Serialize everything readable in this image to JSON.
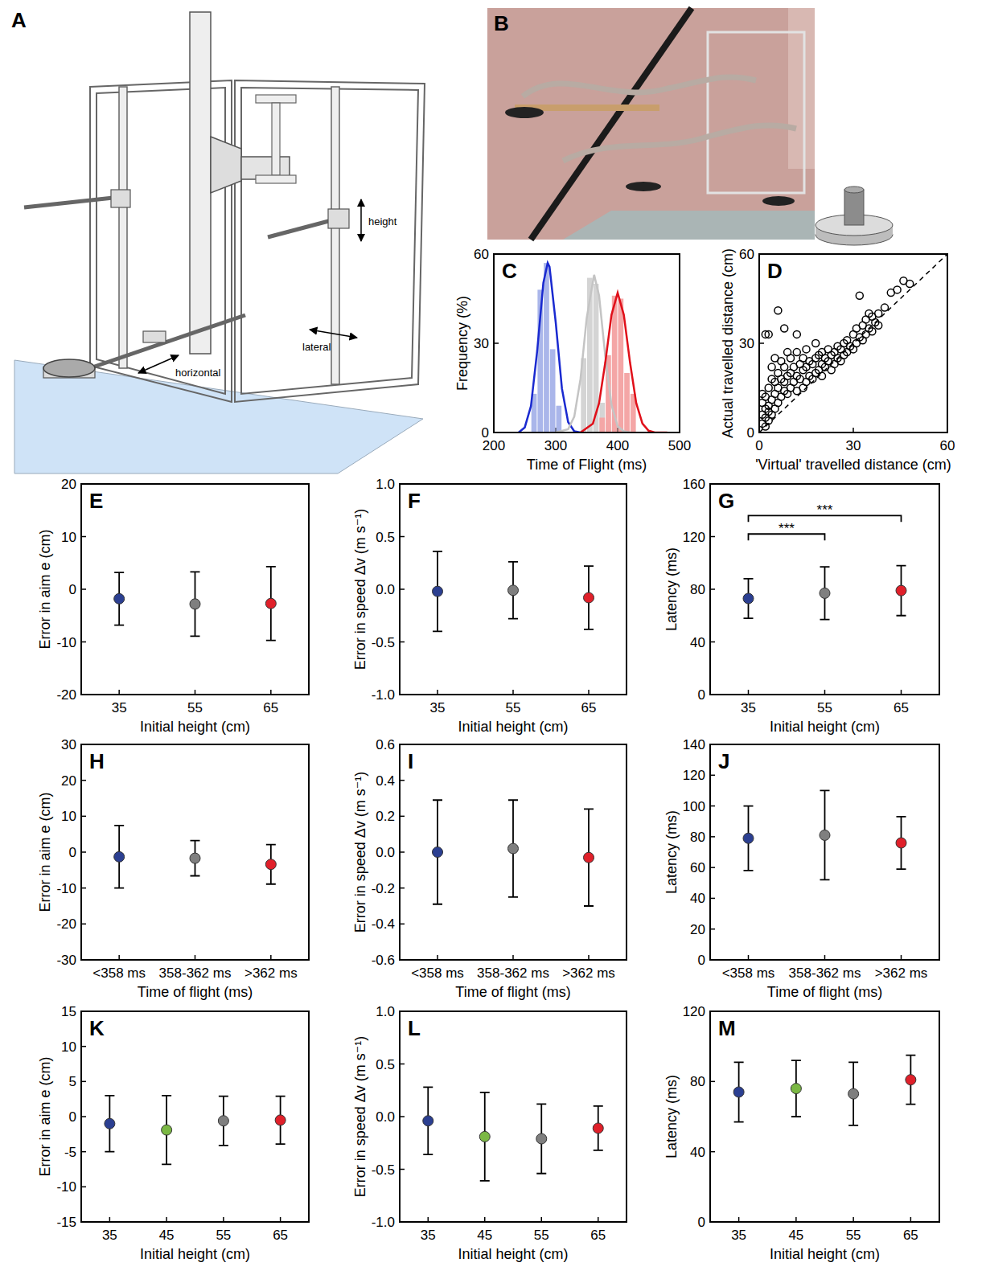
{
  "diagram": {
    "title": "A",
    "labels": [
      "height",
      "lateral",
      "horizontal"
    ]
  },
  "photo": {
    "title": "B"
  },
  "chart_data": [
    {
      "type": "histogram",
      "title": "C",
      "x_label": "Time of Flight (ms)",
      "y_label": "Frequency (%)",
      "xlim": [
        200,
        500
      ],
      "xticks": [
        200,
        300,
        400,
        500
      ],
      "ylim": [
        0,
        60
      ],
      "yticks": [
        0,
        30,
        60
      ],
      "bins": [
        250,
        260,
        270,
        280,
        290,
        300,
        310,
        320,
        330,
        340,
        350,
        360,
        370,
        380,
        390,
        400,
        410,
        420,
        430,
        440,
        450,
        460
      ],
      "series": [
        {
          "color": "#aab6ea",
          "values": [
            0,
            13,
            48,
            57,
            28,
            9,
            0,
            0,
            0,
            0,
            0,
            0,
            0,
            0,
            0,
            0,
            0,
            0,
            0,
            0,
            0
          ]
        },
        {
          "color": "#d4d4d4",
          "values": [
            0,
            0,
            0,
            0,
            0,
            0,
            0,
            0,
            0,
            25,
            52,
            50,
            10,
            3,
            0,
            0,
            0,
            0,
            0,
            0,
            0
          ]
        },
        {
          "color": "#f4a6a6",
          "values": [
            0,
            0,
            0,
            0,
            0,
            0,
            0,
            0,
            0,
            0,
            0,
            0,
            5,
            26,
            46,
            45,
            20,
            13,
            0,
            0,
            0
          ]
        },
        {
          "type": "line",
          "color": "#1a2ad0",
          "x": [
            240,
            250,
            260,
            270,
            280,
            287,
            290,
            300,
            310,
            320,
            330,
            340
          ],
          "values": [
            0,
            1.7,
            8.9,
            27.3,
            50.3,
            57,
            55.7,
            37,
            14.8,
            3.5,
            0.4,
            0
          ]
        },
        {
          "type": "line",
          "color": "#c4c4c4",
          "x": [
            300,
            320,
            330,
            340,
            350,
            362,
            370,
            380,
            390,
            400,
            410,
            420
          ],
          "values": [
            0,
            1.1,
            5.4,
            18,
            38.5,
            53,
            46,
            25.8,
            9.3,
            2.1,
            0.4,
            0
          ]
        },
        {
          "type": "line",
          "color": "#e0101a",
          "x": [
            340,
            360,
            370,
            380,
            390,
            400,
            410,
            420,
            430,
            440,
            450,
            460,
            480
          ],
          "values": [
            0,
            3,
            9.9,
            23.5,
            39.5,
            47,
            39.5,
            23.5,
            9.9,
            3,
            0.6,
            0,
            0
          ]
        }
      ]
    },
    {
      "type": "scatter",
      "title": "D",
      "x_label": "'Virtual' travelled distance (cm)",
      "y_label": "Actual travelled distance (cm)",
      "xlim": [
        0,
        60
      ],
      "xticks": [
        0,
        30,
        60
      ],
      "ylim": [
        0,
        60
      ],
      "yticks": [
        0,
        30,
        60
      ],
      "series": [
        {
          "type": "scatter",
          "marker": "circle",
          "color": "#000000",
          "x": [
            1,
            1,
            1,
            1,
            2,
            2,
            2,
            2,
            2,
            3,
            3,
            3,
            3,
            3,
            4,
            4,
            4,
            4,
            5,
            5,
            5,
            5,
            6,
            6,
            6,
            6,
            7,
            7,
            7,
            8,
            8,
            8,
            8,
            9,
            9,
            9,
            10,
            10,
            10,
            11,
            11,
            12,
            12,
            12,
            12,
            13,
            13,
            14,
            14,
            14,
            15,
            15,
            15,
            16,
            16,
            17,
            17,
            18,
            18,
            18,
            19,
            19,
            20,
            20,
            20,
            21,
            21,
            22,
            22,
            23,
            23,
            24,
            24,
            25,
            25,
            26,
            26,
            27,
            27,
            28,
            28,
            29,
            30,
            30,
            31,
            31,
            32,
            32,
            33,
            33,
            34,
            34,
            35,
            35,
            36,
            36,
            37,
            38,
            38,
            40,
            42,
            44,
            46,
            48
          ],
          "values": [
            3,
            6,
            10,
            13,
            2,
            5,
            8,
            12,
            33,
            4,
            7,
            9,
            15,
            33,
            6,
            11,
            18,
            22,
            8,
            13,
            17,
            25,
            10,
            15,
            20,
            41,
            12,
            18,
            24,
            14,
            17,
            22,
            35,
            13,
            19,
            27,
            15,
            20,
            25,
            17,
            22,
            14,
            19,
            27,
            33,
            18,
            23,
            15,
            21,
            25,
            17,
            22,
            28,
            19,
            24,
            18,
            23,
            20,
            25,
            30,
            21,
            26,
            19,
            23,
            27,
            22,
            25,
            24,
            28,
            21,
            26,
            23,
            27,
            25,
            29,
            24,
            28,
            26,
            30,
            27,
            31,
            29,
            28,
            33,
            30,
            35,
            32,
            46,
            31,
            36,
            33,
            38,
            35,
            40,
            34,
            39,
            37,
            36,
            40,
            42,
            47,
            48,
            51,
            50
          ]
        },
        {
          "type": "line",
          "line_style": "dashed",
          "color": "#000000",
          "x": [
            0,
            60
          ],
          "values": [
            0,
            60
          ]
        }
      ]
    },
    {
      "type": "errorbar",
      "title": "E",
      "x_label": "Initial height (cm)",
      "y_label": "Error in aim e (cm)",
      "categories": [
        "35",
        "55",
        "65"
      ],
      "values": [
        -1.8,
        -2.8,
        -2.7
      ],
      "errors": [
        5,
        6.1,
        7
      ],
      "colors": [
        "#2b3f91",
        "#7f7f7f",
        "#e0202a"
      ],
      "ylim": [
        -20,
        20
      ],
      "yticks": [
        -20,
        -10,
        0,
        10,
        20
      ]
    },
    {
      "type": "errorbar",
      "title": "F",
      "x_label": "Initial height (cm)",
      "y_label": "Error in speed Δv (m s⁻¹)",
      "categories": [
        "35",
        "55",
        "65"
      ],
      "values": [
        -0.02,
        -0.01,
        -0.08
      ],
      "errors": [
        0.38,
        0.27,
        0.3
      ],
      "colors": [
        "#2b3f91",
        "#7f7f7f",
        "#e0202a"
      ],
      "ylim": [
        -1,
        1
      ],
      "yticks": [
        {
          "value": -1,
          "label": "-1.0"
        },
        -0.5,
        {
          "value": 0,
          "label": "0.0"
        },
        0.5,
        {
          "value": 1,
          "label": "1.0"
        }
      ]
    },
    {
      "type": "errorbar",
      "title": "G",
      "x_label": "Initial height (cm)",
      "y_label": "Latency (ms)",
      "categories": [
        "35",
        "55",
        "65"
      ],
      "values": [
        73,
        77,
        79
      ],
      "errors": [
        15,
        20,
        19
      ],
      "colors": [
        "#2b3f91",
        "#7f7f7f",
        "#e0202a"
      ],
      "ylim": [
        0,
        160
      ],
      "yticks": [
        0,
        40,
        80,
        120,
        160
      ],
      "annotations": [
        {
          "text": "***",
          "from": 0,
          "to": 1,
          "y": 122
        },
        {
          "text": "***",
          "from": 0,
          "to": 2,
          "y": 136
        }
      ]
    },
    {
      "type": "errorbar",
      "title": "H",
      "x_label": "Time of flight (ms)",
      "y_label": "Error in aim e (cm)",
      "categories": [
        "<358 ms",
        "358-362 ms",
        ">362 ms"
      ],
      "values": [
        -1.3,
        -1.7,
        -3.4
      ],
      "errors": [
        8.7,
        4.9,
        5.5
      ],
      "colors": [
        "#2b3f91",
        "#7f7f7f",
        "#e0202a"
      ],
      "ylim": [
        -30,
        30
      ],
      "yticks": [
        -30,
        -20,
        -10,
        0,
        10,
        20,
        30
      ]
    },
    {
      "type": "errorbar",
      "title": "I",
      "x_label": "Time of flight (ms)",
      "y_label": "Error in speed Δv (m s⁻¹)",
      "categories": [
        "<358 ms",
        "358-362 ms",
        ">362 ms"
      ],
      "values": [
        0,
        0.02,
        -0.03
      ],
      "errors": [
        0.29,
        0.27,
        0.27
      ],
      "colors": [
        "#2b3f91",
        "#7f7f7f",
        "#e0202a"
      ],
      "ylim": [
        -0.6,
        0.6
      ],
      "yticks": [
        -0.6,
        -0.4,
        -0.2,
        {
          "value": 0,
          "label": "0.0"
        },
        0.2,
        0.4,
        0.6
      ]
    },
    {
      "type": "errorbar",
      "title": "J",
      "x_label": "Time of flight (ms)",
      "y_label": "Latency (ms)",
      "categories": [
        "<358 ms",
        "358-362 ms",
        ">362 ms"
      ],
      "values": [
        79,
        81,
        76
      ],
      "errors": [
        21,
        29,
        17
      ],
      "colors": [
        "#2b3f91",
        "#7f7f7f",
        "#e0202a"
      ],
      "ylim": [
        0,
        140
      ],
      "yticks": [
        0,
        20,
        40,
        60,
        80,
        100,
        120,
        140
      ]
    },
    {
      "type": "errorbar",
      "title": "K",
      "x_label": "Initial height (cm)",
      "y_label": "Error in aim e (cm)",
      "categories": [
        "35",
        "45",
        "55",
        "65"
      ],
      "values": [
        -1,
        -1.9,
        -0.6,
        -0.5
      ],
      "errors": [
        4,
        4.9,
        3.5,
        3.4
      ],
      "colors": [
        "#2b3f91",
        "#7bb844",
        "#7f7f7f",
        "#e0202a"
      ],
      "ylim": [
        -15,
        15
      ],
      "yticks": [
        -15,
        -10,
        -5,
        0,
        5,
        10,
        15
      ]
    },
    {
      "type": "errorbar",
      "title": "L",
      "x_label": "Initial height (cm)",
      "y_label": "Error in speed Δv (m s⁻¹)",
      "categories": [
        "35",
        "45",
        "55",
        "65"
      ],
      "values": [
        -0.04,
        -0.19,
        -0.21,
        -0.11
      ],
      "errors": [
        0.32,
        0.42,
        0.33,
        0.21
      ],
      "colors": [
        "#2b3f91",
        "#7bb844",
        "#7f7f7f",
        "#e0202a"
      ],
      "ylim": [
        -1,
        1
      ],
      "yticks": [
        {
          "value": -1,
          "label": "-1.0"
        },
        -0.5,
        {
          "value": 0,
          "label": "0.0"
        },
        0.5,
        {
          "value": 1,
          "label": "1.0"
        }
      ]
    },
    {
      "type": "errorbar",
      "title": "M",
      "x_label": "Initial height (cm)",
      "y_label": "Latency (ms)",
      "categories": [
        "35",
        "45",
        "55",
        "65"
      ],
      "values": [
        74,
        76,
        73,
        81
      ],
      "errors": [
        17,
        16,
        18,
        14
      ],
      "colors": [
        "#2b3f91",
        "#7bb844",
        "#7f7f7f",
        "#e0202a"
      ],
      "ylim": [
        0,
        120
      ],
      "yticks": [
        0,
        40,
        80,
        120
      ]
    }
  ]
}
